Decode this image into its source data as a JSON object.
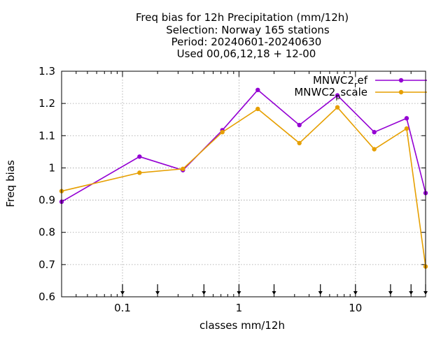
{
  "chart_data": {
    "type": "line",
    "title_lines": [
      "Freq bias  for 12h Precipitation (mm/12h)",
      "Selection: Norway    165 stations",
      "Period: 20240601-20240630",
      "Used 00,06,12,18 + 12-00"
    ],
    "xlabel": "classes mm/12h",
    "ylabel": "Freq bias",
    "x_scale": "log",
    "xlim": [
      0.03,
      40
    ],
    "ylim": [
      0.6,
      1.3
    ],
    "x_ticks": [
      {
        "value": 0.1,
        "label": "0.1"
      },
      {
        "value": 1,
        "label": "1"
      },
      {
        "value": 10,
        "label": "10"
      }
    ],
    "y_ticks": [
      {
        "value": 0.6,
        "label": "0.6"
      },
      {
        "value": 0.7,
        "label": "0.7"
      },
      {
        "value": 0.8,
        "label": "0.8"
      },
      {
        "value": 0.9,
        "label": "0.9"
      },
      {
        "value": 1.0,
        "label": "1"
      },
      {
        "value": 1.1,
        "label": "1.1"
      },
      {
        "value": 1.2,
        "label": "1.2"
      },
      {
        "value": 1.3,
        "label": "1.3"
      }
    ],
    "grid": true,
    "legend_position": "top-right",
    "arrow_markers_x": [
      0.1,
      0.2,
      0.5,
      1,
      2,
      5,
      10,
      20,
      30,
      40
    ],
    "series": [
      {
        "name": "MNWC2_ref",
        "legend_main": "MNWC2",
        "legend_sub": "r",
        "legend_rest": "ef",
        "color": "#9400d3",
        "x": [
          0.03,
          0.14,
          0.33,
          0.72,
          1.45,
          3.3,
          7.0,
          14.5,
          27.5,
          40
        ],
        "y": [
          0.895,
          1.035,
          0.993,
          1.117,
          1.242,
          1.133,
          1.225,
          1.111,
          1.154,
          0.922
        ]
      },
      {
        "name": "MNWC2_scale",
        "legend_main": "MNWC2",
        "legend_sub": "p",
        "legend_rest": "scale",
        "color": "#e69f00",
        "x": [
          0.03,
          0.14,
          0.33,
          0.72,
          1.45,
          3.3,
          7.0,
          14.5,
          27.5,
          40
        ],
        "y": [
          0.928,
          0.985,
          0.997,
          1.111,
          1.183,
          1.077,
          1.188,
          1.058,
          1.122,
          0.694
        ]
      }
    ]
  }
}
